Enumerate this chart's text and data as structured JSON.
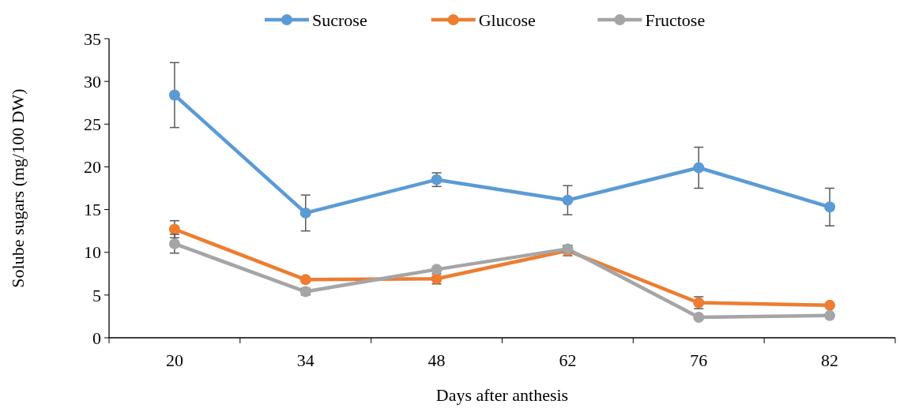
{
  "chart_data": {
    "type": "line",
    "xlabel": "Days after anthesis",
    "ylabel": "Solube sugars (mg/100 DW)",
    "categories": [
      "20",
      "34",
      "48",
      "62",
      "76",
      "82"
    ],
    "series": [
      {
        "name": "Sucrose",
        "color": "#5b9bd5",
        "values": [
          28.4,
          14.6,
          18.5,
          16.1,
          19.9,
          15.3
        ],
        "errors": [
          3.8,
          2.1,
          0.8,
          1.7,
          2.4,
          2.2
        ]
      },
      {
        "name": "Glucose",
        "color": "#ed7d31",
        "values": [
          12.7,
          6.8,
          6.9,
          10.2,
          4.1,
          3.8
        ],
        "errors": [
          1.0,
          null,
          0.6,
          0.6,
          0.7,
          null
        ]
      },
      {
        "name": "Fructose",
        "color": "#a5a5a5",
        "values": [
          11.0,
          5.4,
          8.0,
          10.4,
          2.4,
          2.6
        ],
        "errors": [
          1.1,
          0.4,
          null,
          0.4,
          null,
          null
        ]
      }
    ],
    "ylim": [
      0,
      35
    ],
    "yticks": [
      0,
      5,
      10,
      15,
      20,
      25,
      30,
      35
    ],
    "grid": false,
    "legend": "top",
    "marker": "circle"
  }
}
